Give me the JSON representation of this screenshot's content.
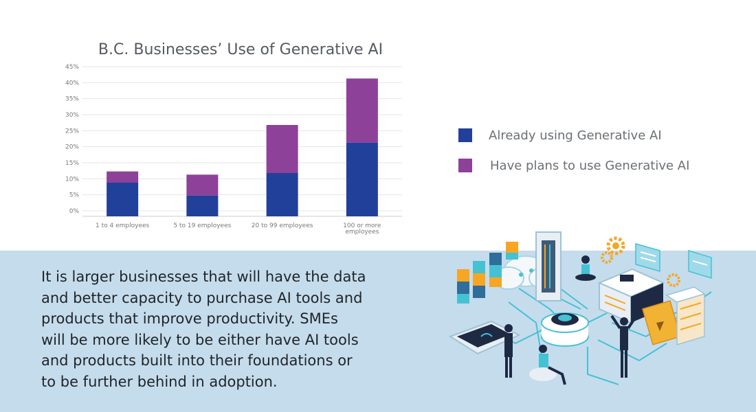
{
  "chart_data": {
    "type": "bar",
    "stacked": true,
    "title": "B.C. Businesses’ Use of Generative AI",
    "categories": [
      "1 to 4 employees",
      "5 to 19 employees",
      "20 to 99 employees",
      "100 or more employees"
    ],
    "series": [
      {
        "name": "Already using Generative AI",
        "values": [
          10.5,
          6.5,
          13.5,
          23
        ]
      },
      {
        "name": "Have plans to use Generative AI",
        "values": [
          3.5,
          6.5,
          15,
          20
        ]
      }
    ],
    "yticks": [
      "0%",
      "5%",
      "10%",
      "15%",
      "20%",
      "25%",
      "30%",
      "35%",
      "40%",
      "45%"
    ],
    "ylim": [
      0,
      45
    ],
    "grid": true,
    "legend_position": "right",
    "colors": {
      "using": "#21409a",
      "plans": "#8d4199",
      "grid": "#e5e5e5",
      "tick": "#777777"
    }
  },
  "legend": {
    "items": [
      {
        "label": "Already using Generative AI",
        "color": "#21409a"
      },
      {
        "label": "Have plans to use Generative AI",
        "color": "#8d4199"
      }
    ]
  },
  "body": {
    "lines": [
      "It is larger businesses that will have the data",
      "and better capacity to purchase AI tools and",
      "products that improve productivity. SMEs",
      "will be more likely to be either have AI tools",
      "and products built into their foundations or",
      "to be further behind in adoption."
    ]
  },
  "illustration": {
    "icon": "ai-technology-isometric-illustration",
    "colors": {
      "teal": "#45c1d4",
      "navy": "#1e2a44",
      "gear": "#f6a623",
      "server": "#e8eef4",
      "screen": "#3e5c7a",
      "folder": "#f2b233"
    }
  }
}
